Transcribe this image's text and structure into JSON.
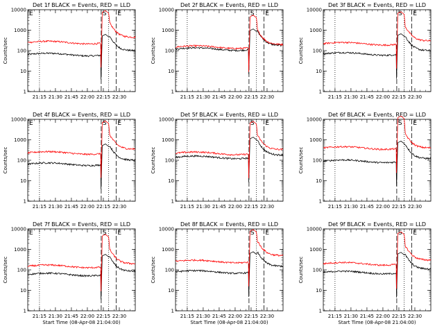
{
  "chart_data": [
    {
      "type": "line",
      "title": "Det 1f BLACK = Events, RED = LLD",
      "xlabel": "",
      "ylabel": "Counts/sec",
      "first_marker": "E",
      "red_base": 250,
      "black_base": 65,
      "dip_at": "22:13",
      "red_end": 450,
      "black_end": 100,
      "series": [
        {
          "name": "BLACK = Events",
          "color": "#000000"
        },
        {
          "name": "RED = LLD",
          "color": "#ff0000"
        }
      ]
    },
    {
      "type": "line",
      "title": "Det 2f BLACK = Events, RED = LLD",
      "xlabel": "",
      "ylabel": "Counts/sec",
      "first_marker": "",
      "red_base": 150,
      "black_base": 120,
      "dip_at": "22:13",
      "red_end": 200,
      "black_end": 180,
      "series": [
        {
          "name": "BLACK = Events",
          "color": "#000000"
        },
        {
          "name": "RED = LLD",
          "color": "#ff0000"
        }
      ]
    },
    {
      "type": "line",
      "title": "Det 3f BLACK = Events, RED = LLD",
      "xlabel": "",
      "ylabel": "Counts/sec",
      "first_marker": "",
      "red_base": 220,
      "black_base": 70,
      "dip_at": "22:13",
      "red_end": 300,
      "black_end": 100,
      "series": [
        {
          "name": "BLACK = Events",
          "color": "#000000"
        },
        {
          "name": "RED = LLD",
          "color": "#ff0000"
        }
      ]
    },
    {
      "type": "line",
      "title": "Det 4f BLACK = Events, RED = LLD",
      "xlabel": "",
      "ylabel": "Counts/sec",
      "first_marker": "E",
      "red_base": 230,
      "black_base": 65,
      "dip_at": "22:13",
      "red_end": 350,
      "black_end": 100,
      "series": [
        {
          "name": "BLACK = Events",
          "color": "#000000"
        },
        {
          "name": "RED = LLD",
          "color": "#ff0000"
        }
      ]
    },
    {
      "type": "line",
      "title": "Det 5f BLACK = Events, RED = LLD",
      "xlabel": "",
      "ylabel": "Counts/sec",
      "first_marker": "",
      "red_base": 220,
      "black_base": 140,
      "dip_at": "22:13",
      "red_end": 330,
      "black_end": 180,
      "series": [
        {
          "name": "BLACK = Events",
          "color": "#000000"
        },
        {
          "name": "RED = LLD",
          "color": "#ff0000"
        }
      ]
    },
    {
      "type": "line",
      "title": "Det 6f BLACK = Events, RED = LLD",
      "xlabel": "",
      "ylabel": "Counts/sec",
      "first_marker": "",
      "red_base": 400,
      "black_base": 90,
      "dip_at": "22:13",
      "red_end": 400,
      "black_end": 120,
      "series": [
        {
          "name": "BLACK = Events",
          "color": "#000000"
        },
        {
          "name": "RED = LLD",
          "color": "#ff0000"
        }
      ]
    },
    {
      "type": "line",
      "title": "Det 7f BLACK = Events, RED = LLD",
      "xlabel": "Start Time (08-Apr-08 21:04:00)",
      "ylabel": "Counts/sec",
      "first_marker": "E",
      "red_base": 150,
      "black_base": 60,
      "dip_at": "22:13",
      "red_end": 200,
      "black_end": 85,
      "series": [
        {
          "name": "BLACK = Events",
          "color": "#000000"
        },
        {
          "name": "RED = LLD",
          "color": "#ff0000"
        }
      ]
    },
    {
      "type": "line",
      "title": "Det 8f BLACK = Events, RED = LLD",
      "xlabel": "Start Time (08-Apr-08 21:04:00)",
      "ylabel": "Counts/sec",
      "first_marker": "",
      "red_base": 260,
      "black_base": 80,
      "dip_at": "22:13",
      "red_end": 500,
      "black_end": 150,
      "series": [
        {
          "name": "BLACK = Events",
          "color": "#000000"
        },
        {
          "name": "RED = LLD",
          "color": "#ff0000"
        }
      ]
    },
    {
      "type": "line",
      "title": "Det 9f BLACK = Events, RED = LLD",
      "xlabel": "Start Time (08-Apr-08 21:04:00)",
      "ylabel": "Counts/sec",
      "first_marker": "",
      "red_base": 200,
      "black_base": 75,
      "dip_at": "22:13",
      "red_end": 300,
      "black_end": 110,
      "series": [
        {
          "name": "BLACK = Events",
          "color": "#000000"
        },
        {
          "name": "RED = LLD",
          "color": "#ff0000"
        }
      ]
    }
  ],
  "shared": {
    "x_ticks": [
      "21:15",
      "21:30",
      "21:45",
      "22:00",
      "22:15",
      "22:30"
    ],
    "y_ticks": [
      "1",
      "10",
      "100",
      "1000",
      "10000"
    ],
    "ylim": [
      1,
      10000
    ],
    "y_scale": "log",
    "x_range": [
      "21:04",
      "22:45"
    ],
    "markers": [
      "S",
      "E"
    ],
    "dotted_lines": [
      "21:15",
      "22:20"
    ],
    "dashed_lines": [
      "22:13",
      "22:27"
    ]
  }
}
